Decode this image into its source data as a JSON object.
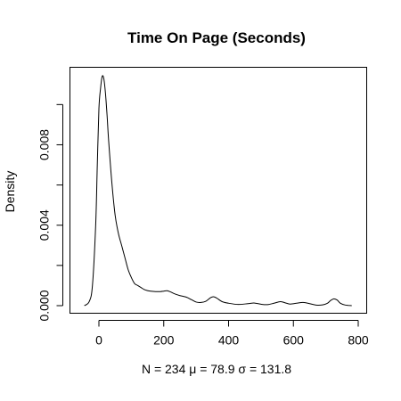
{
  "chart_data": {
    "type": "line",
    "title": "Time On Page (Seconds)",
    "xlabel": "N = 234 μ = 78.9 σ = 131.8",
    "ylabel": "Density",
    "xlim": [
      -55,
      800
    ],
    "ylim": [
      0,
      0.0113
    ],
    "x_ticks": [
      0,
      200,
      400,
      600,
      800
    ],
    "x_tick_labels": [
      "0",
      "200",
      "400",
      "600",
      "800"
    ],
    "y_ticks": [
      0.0,
      0.002,
      0.004,
      0.006,
      0.008,
      0.01
    ],
    "y_tick_labels": [
      "0.000",
      "",
      "0.004",
      "",
      "0.008",
      ""
    ],
    "grid": false,
    "series": [
      {
        "name": "density",
        "color": "#000000",
        "x": [
          -45,
          -30,
          -20,
          -10,
          -5,
          0,
          5,
          10,
          15,
          20,
          25,
          30,
          40,
          50,
          60,
          70,
          80,
          90,
          100,
          110,
          120,
          130,
          140,
          150,
          160,
          175,
          190,
          200,
          210,
          220,
          235,
          250,
          270,
          285,
          300,
          315,
          330,
          345,
          355,
          365,
          380,
          400,
          430,
          460,
          480,
          500,
          520,
          540,
          560,
          575,
          590,
          610,
          630,
          650,
          670,
          690,
          705,
          715,
          725,
          735,
          745,
          760,
          780
        ],
        "y": [
          0.0,
          0.0002,
          0.001,
          0.004,
          0.007,
          0.0098,
          0.0108,
          0.0114,
          0.0113,
          0.0106,
          0.0095,
          0.0082,
          0.0061,
          0.0045,
          0.0036,
          0.003,
          0.0024,
          0.0018,
          0.0014,
          0.0011,
          0.001,
          0.0009,
          0.0008,
          0.00075,
          0.00072,
          0.0007,
          0.0007,
          0.00072,
          0.00074,
          0.00069,
          0.00058,
          0.0005,
          0.00042,
          0.0003,
          0.00018,
          0.00016,
          0.00022,
          0.0004,
          0.00044,
          0.00036,
          0.0002,
          0.00012,
          6e-05,
          0.0001,
          0.00013,
          7e-05,
          5e-05,
          0.00012,
          0.0002,
          0.00014,
          8e-05,
          0.00012,
          0.00016,
          0.0001,
          3e-05,
          4e-05,
          0.00012,
          0.00026,
          0.00034,
          0.00028,
          0.00012,
          3e-05,
          0.0
        ]
      }
    ]
  }
}
